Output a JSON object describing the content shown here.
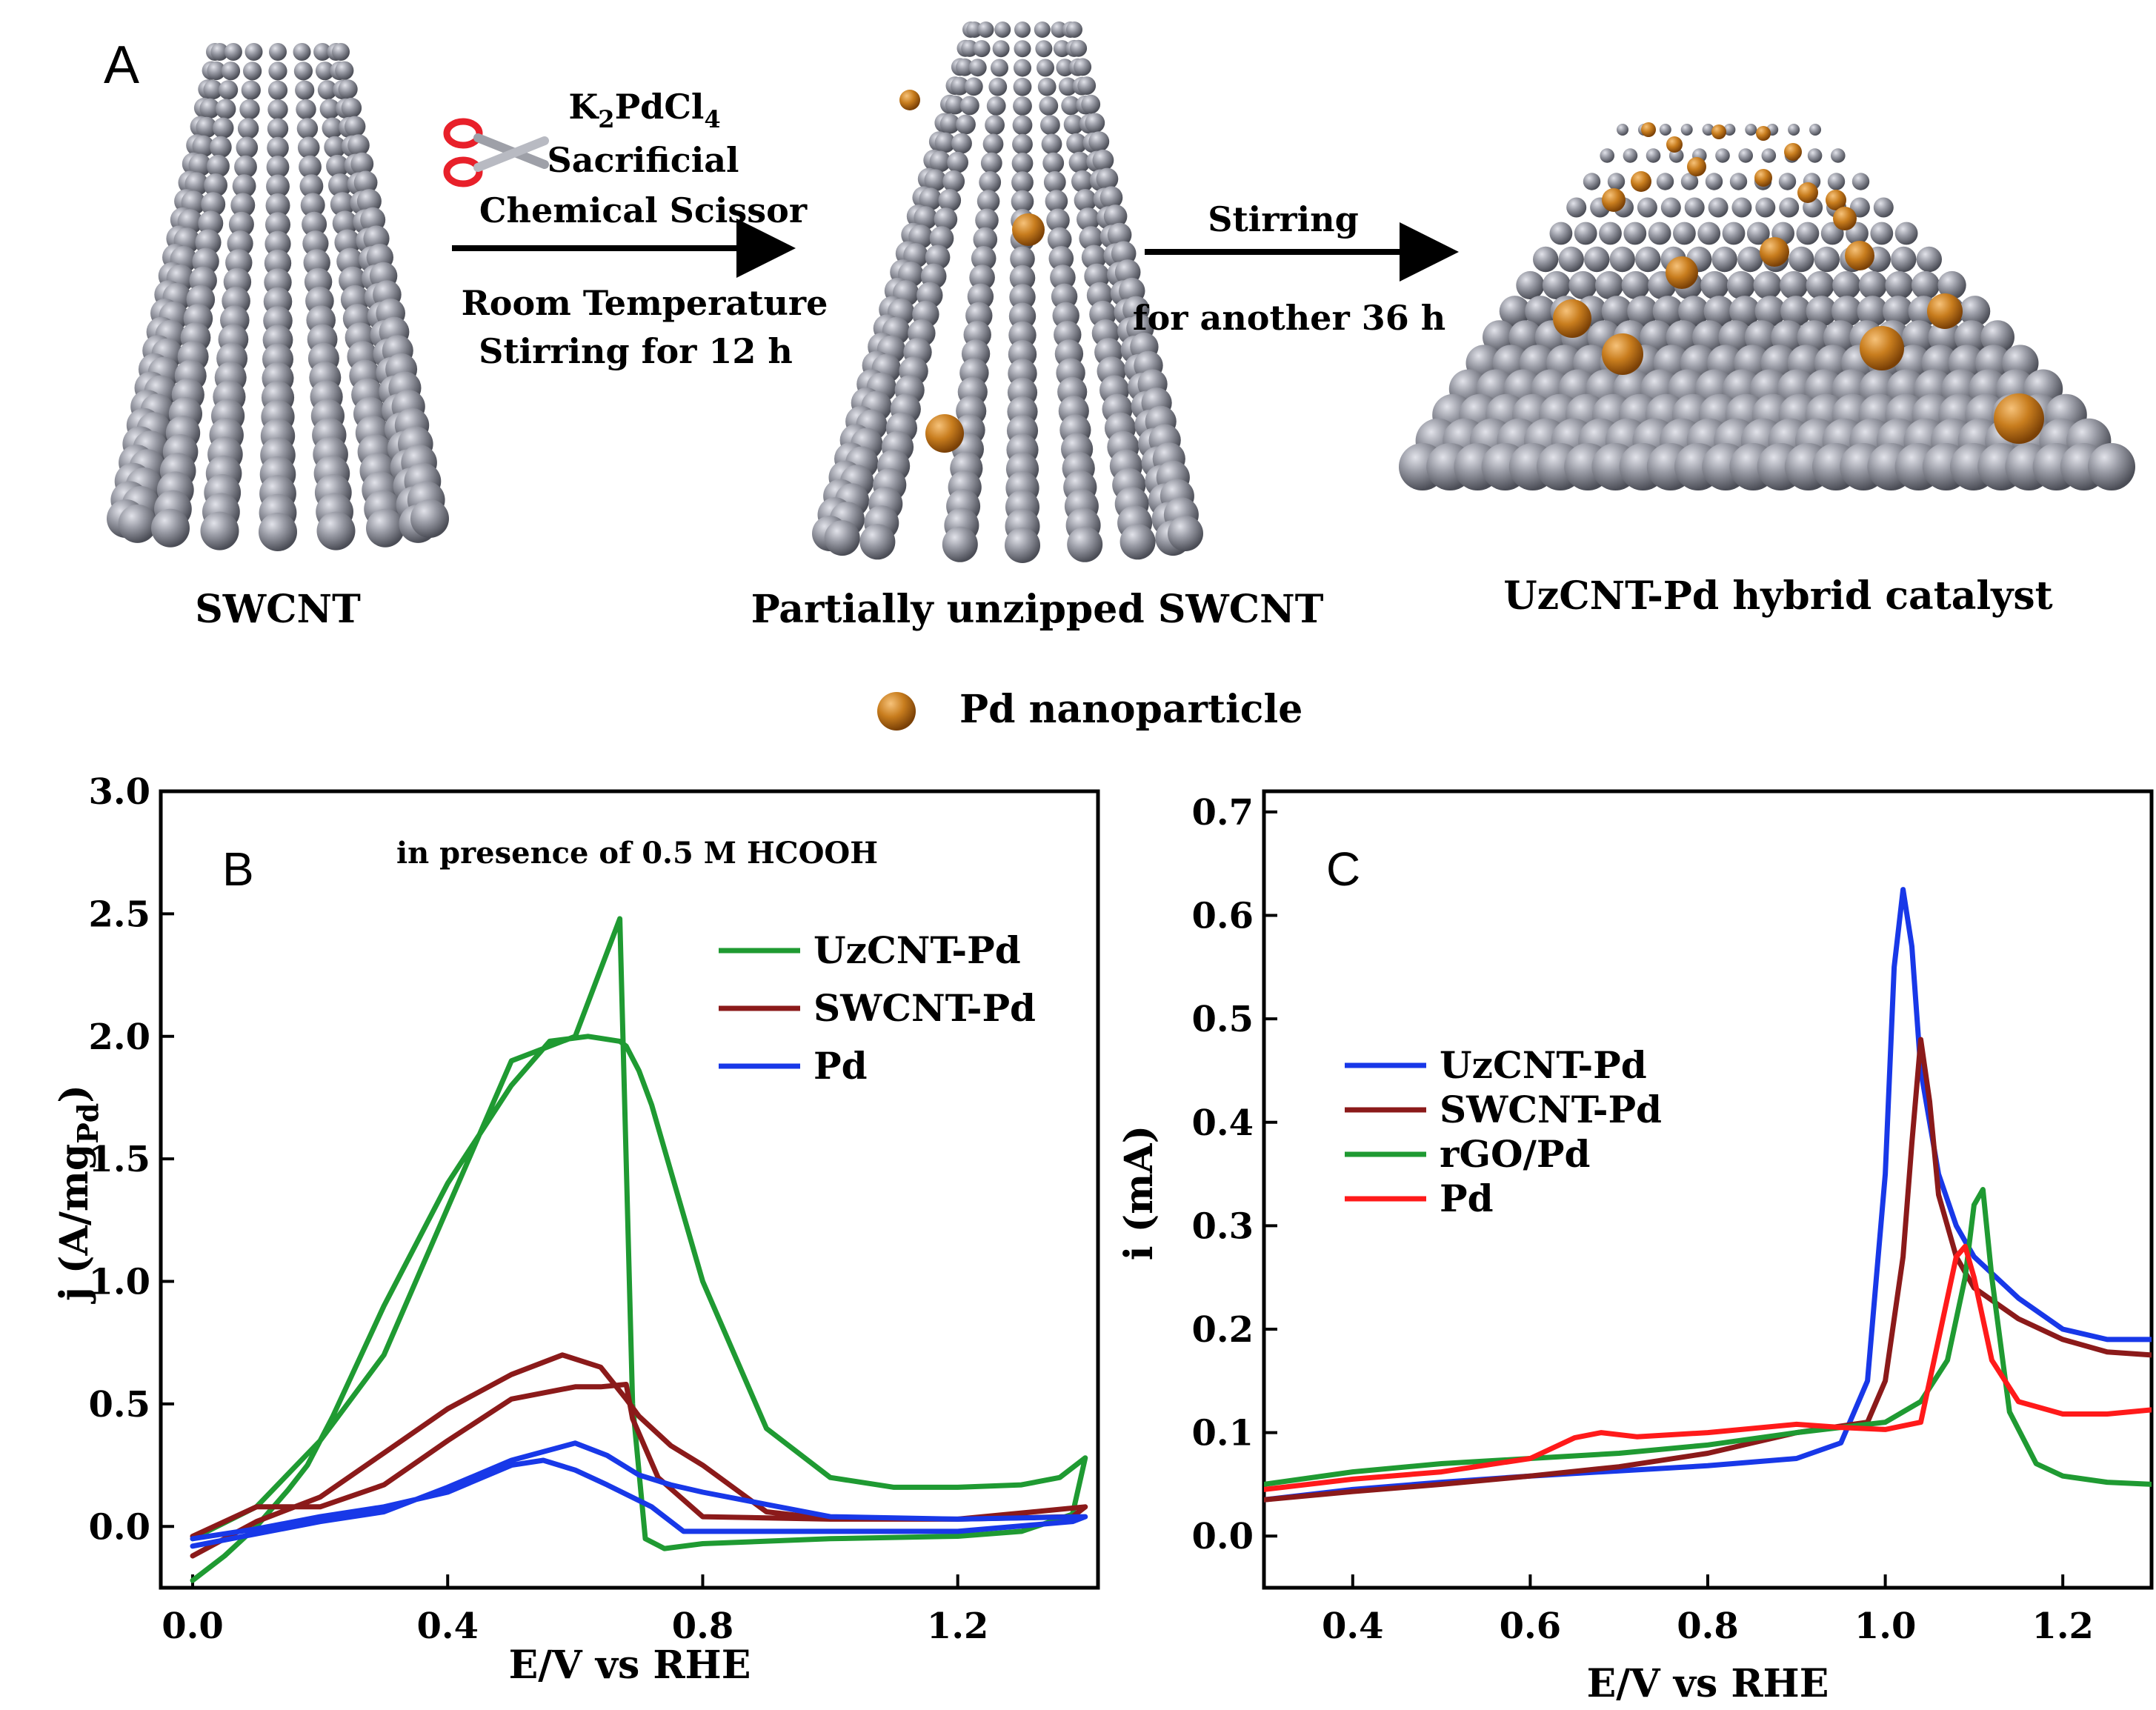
{
  "panel_a": {
    "label": "A",
    "structures": [
      {
        "name": "SWCNT"
      },
      {
        "name": "Partially unzipped SWCNT"
      },
      {
        "name": "UzCNT-Pd hybrid catalyst"
      }
    ],
    "step1": {
      "reagent": "K2PdCl4",
      "line2": "Sacrificial",
      "line3": "Chemical Scissor",
      "line4": "Room Temperature",
      "line5": "Stirring  for 12 h"
    },
    "step2": {
      "line1": "Stirring",
      "line2": "for another 36 h"
    },
    "legend": "Pd nanoparticle",
    "colors": {
      "carbon": "#8a8c96",
      "pd": "#c87d1e"
    }
  },
  "chart_data": [
    {
      "panel": "B",
      "type": "line",
      "title": "in presence of 0.5 M HCOOH",
      "xlabel": "E/V vs RHE",
      "ylabel": "j (A/mg",
      "ylabel_sub": "Pd",
      "ylabel_close": ")",
      "xlim": [
        -0.05,
        1.42
      ],
      "ylim": [
        -0.25,
        3.0
      ],
      "xticks": [
        0.0,
        0.4,
        0.8,
        1.2
      ],
      "xticklabels": [
        "0.0",
        "0.4",
        "0.8",
        "1.2"
      ],
      "yticks": [
        0.0,
        0.5,
        1.0,
        1.5,
        2.0,
        2.5,
        3.0
      ],
      "yticklabels": [
        "0.0",
        "0.5",
        "1.0",
        "1.5",
        "2.0",
        "2.5",
        "3.0"
      ],
      "legend_position": "top-right",
      "series": [
        {
          "name": "UzCNT-Pd",
          "color": "#1f9a32",
          "x": [
            0.0,
            0.05,
            0.1,
            0.15,
            0.18,
            0.22,
            0.3,
            0.4,
            0.5,
            0.56,
            0.62,
            0.67,
            0.68,
            0.7,
            0.72,
            0.75,
            0.8,
            0.9,
            1.0,
            1.1,
            1.2,
            1.3,
            1.36,
            1.4,
            1.38,
            1.3,
            1.2,
            1.0,
            0.8,
            0.74,
            0.71,
            0.69,
            0.67,
            0.6,
            0.5,
            0.4,
            0.3,
            0.2,
            0.1,
            0.0
          ],
          "y": [
            -0.22,
            -0.12,
            0.0,
            0.15,
            0.25,
            0.45,
            0.9,
            1.4,
            1.8,
            1.98,
            2.0,
            1.98,
            1.96,
            1.86,
            1.72,
            1.45,
            1.0,
            0.4,
            0.2,
            0.16,
            0.16,
            0.17,
            0.2,
            0.28,
            0.05,
            -0.02,
            -0.04,
            -0.05,
            -0.07,
            -0.09,
            -0.05,
            0.5,
            2.48,
            2.0,
            1.9,
            1.3,
            0.7,
            0.35,
            0.08,
            -0.05
          ]
        },
        {
          "name": "SWCNT-Pd",
          "color": "#8b1a1a",
          "x": [
            0.0,
            0.1,
            0.2,
            0.3,
            0.4,
            0.5,
            0.58,
            0.64,
            0.68,
            0.7,
            0.75,
            0.8,
            0.9,
            1.0,
            1.2,
            1.4,
            1.38,
            1.2,
            1.0,
            0.8,
            0.73,
            0.69,
            0.68,
            0.64,
            0.6,
            0.5,
            0.4,
            0.3,
            0.2,
            0.1,
            0.0
          ],
          "y": [
            -0.12,
            0.02,
            0.12,
            0.3,
            0.48,
            0.62,
            0.7,
            0.65,
            0.52,
            0.45,
            0.33,
            0.25,
            0.06,
            0.03,
            0.03,
            0.08,
            0.04,
            0.03,
            0.03,
            0.04,
            0.2,
            0.44,
            0.58,
            0.57,
            0.57,
            0.52,
            0.35,
            0.17,
            0.08,
            0.08,
            -0.04
          ]
        },
        {
          "name": "Pd",
          "color": "#1838e8",
          "x": [
            0.0,
            0.1,
            0.2,
            0.3,
            0.4,
            0.5,
            0.6,
            0.65,
            0.7,
            0.75,
            0.8,
            0.9,
            1.0,
            1.2,
            1.4,
            1.38,
            1.2,
            1.0,
            0.8,
            0.77,
            0.72,
            0.65,
            0.6,
            0.55,
            0.5,
            0.4,
            0.3,
            0.2,
            0.1,
            0.0
          ],
          "y": [
            -0.08,
            -0.03,
            0.02,
            0.06,
            0.16,
            0.27,
            0.34,
            0.29,
            0.21,
            0.17,
            0.14,
            0.09,
            0.04,
            0.03,
            0.04,
            0.02,
            -0.02,
            -0.02,
            -0.02,
            -0.02,
            0.08,
            0.17,
            0.23,
            0.27,
            0.25,
            0.14,
            0.08,
            0.04,
            -0.01,
            -0.05
          ]
        }
      ]
    },
    {
      "panel": "C",
      "type": "line",
      "title": "",
      "xlabel": "E/V vs RHE",
      "ylabel": "i (mA)",
      "xlim": [
        0.3,
        1.3
      ],
      "ylim": [
        -0.05,
        0.72
      ],
      "xticks": [
        0.4,
        0.6,
        0.8,
        1.0,
        1.2
      ],
      "xticklabels": [
        "0.4",
        "0.6",
        "0.8",
        "1.0",
        "1.2"
      ],
      "yticks": [
        0.0,
        0.1,
        0.2,
        0.3,
        0.4,
        0.5,
        0.6,
        0.7
      ],
      "yticklabels": [
        "0.0",
        "0.1",
        "0.2",
        "0.3",
        "0.4",
        "0.5",
        "0.6",
        "0.7"
      ],
      "legend_position": "center-left",
      "series": [
        {
          "name": "UzCNT-Pd",
          "color": "#1838e8",
          "x": [
            0.3,
            0.4,
            0.5,
            0.6,
            0.7,
            0.8,
            0.9,
            0.95,
            0.98,
            1.0,
            1.01,
            1.02,
            1.03,
            1.04,
            1.06,
            1.08,
            1.1,
            1.15,
            1.2,
            1.25,
            1.3
          ],
          "y": [
            0.035,
            0.045,
            0.052,
            0.058,
            0.063,
            0.068,
            0.075,
            0.09,
            0.15,
            0.35,
            0.55,
            0.625,
            0.57,
            0.45,
            0.35,
            0.3,
            0.27,
            0.23,
            0.2,
            0.19,
            0.19
          ]
        },
        {
          "name": "SWCNT-Pd",
          "color": "#8b1a1a",
          "x": [
            0.3,
            0.4,
            0.5,
            0.6,
            0.7,
            0.8,
            0.9,
            0.98,
            1.0,
            1.02,
            1.03,
            1.04,
            1.05,
            1.06,
            1.08,
            1.1,
            1.15,
            1.2,
            1.25,
            1.3
          ],
          "y": [
            0.035,
            0.043,
            0.05,
            0.058,
            0.067,
            0.08,
            0.1,
            0.11,
            0.15,
            0.27,
            0.38,
            0.48,
            0.42,
            0.33,
            0.27,
            0.24,
            0.21,
            0.19,
            0.178,
            0.175
          ]
        },
        {
          "name": "rGO/Pd",
          "color": "#1f9a32",
          "x": [
            0.3,
            0.4,
            0.5,
            0.6,
            0.7,
            0.8,
            0.9,
            1.0,
            1.04,
            1.07,
            1.09,
            1.1,
            1.11,
            1.12,
            1.14,
            1.17,
            1.2,
            1.25,
            1.3
          ],
          "y": [
            0.05,
            0.062,
            0.07,
            0.075,
            0.08,
            0.088,
            0.1,
            0.11,
            0.13,
            0.17,
            0.25,
            0.32,
            0.335,
            0.25,
            0.12,
            0.07,
            0.058,
            0.052,
            0.05
          ]
        },
        {
          "name": "Pd",
          "color": "#ff1a1a",
          "x": [
            0.3,
            0.4,
            0.5,
            0.6,
            0.65,
            0.68,
            0.72,
            0.8,
            0.9,
            0.95,
            1.0,
            1.04,
            1.06,
            1.08,
            1.09,
            1.1,
            1.12,
            1.15,
            1.2,
            1.25,
            1.3
          ],
          "y": [
            0.045,
            0.055,
            0.062,
            0.075,
            0.095,
            0.1,
            0.096,
            0.1,
            0.108,
            0.105,
            0.103,
            0.11,
            0.19,
            0.27,
            0.28,
            0.25,
            0.17,
            0.13,
            0.118,
            0.118,
            0.122
          ]
        }
      ]
    }
  ]
}
